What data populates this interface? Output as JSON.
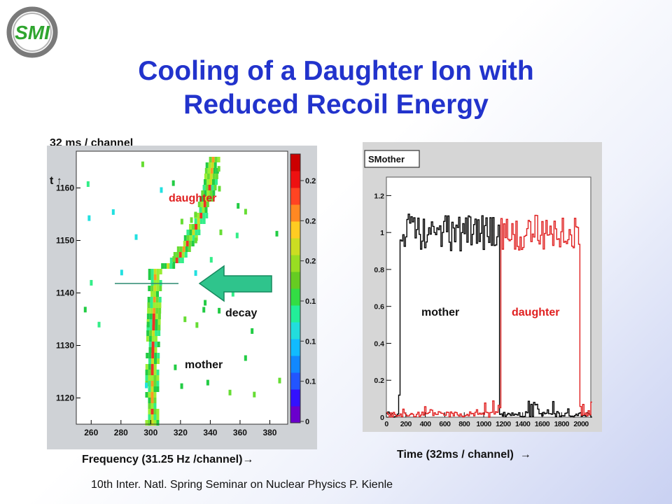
{
  "logo": {
    "text": "SMI"
  },
  "title": {
    "line1": "Cooling of a Daughter Ion with",
    "line2": "Reduced Recoil Energy"
  },
  "footer": "10th Inter. Natl. Spring Seminar on Nuclear Physics   P. Kienle",
  "colors": {
    "title": "#2233cc",
    "mother_series": "#000000",
    "daughter_series": "#e02020",
    "arrow": "#2dbb80",
    "daughter_label": "#e02020"
  },
  "chart_data": [
    {
      "type": "heatmap",
      "top_label": "32 ms / channel",
      "time_arrow_label": "t",
      "xlabel": "Frequency (31.25 Hz /channel)",
      "xlim": [
        250,
        392
      ],
      "ylim": [
        1115,
        1167
      ],
      "x_ticks": [
        260,
        280,
        300,
        320,
        340,
        360,
        380
      ],
      "y_ticks": [
        1120,
        1130,
        1140,
        1150,
        1160
      ],
      "colorbar_ticks": [
        "0",
        "0.1",
        "0.1",
        "0.1",
        "0.2",
        "0.2",
        "0.2"
      ],
      "annotations": {
        "daughter": "daughter",
        "decay": "decay",
        "mother": "mother"
      },
      "decay_time": 1145,
      "mother_trace": [
        [
          301,
          1115
        ],
        [
          301,
          1125
        ],
        [
          302,
          1135
        ],
        [
          303,
          1143
        ],
        [
          303,
          1145
        ]
      ],
      "daughter_trace": [
        [
          303,
          1145
        ],
        [
          316,
          1146
        ],
        [
          327,
          1151
        ],
        [
          335,
          1156
        ],
        [
          340,
          1161
        ],
        [
          342,
          1166
        ]
      ]
    },
    {
      "type": "line",
      "histogram_title": "SMother",
      "xlabel": "Time (32ms / channel)",
      "xlim": [
        0,
        2100
      ],
      "ylim": [
        0,
        1.3
      ],
      "x_ticks": [
        0,
        200,
        400,
        600,
        800,
        1000,
        1200,
        1400,
        1600,
        1800,
        2000
      ],
      "y_ticks": [
        0,
        0.2,
        0.4,
        0.6,
        0.8,
        1,
        1.2
      ],
      "series": [
        {
          "name": "mother",
          "rise": 130,
          "fall": 1150,
          "level": 1.0
        },
        {
          "name": "daughter",
          "rise": 1170,
          "fall": 1980,
          "level": 1.0
        }
      ]
    }
  ]
}
